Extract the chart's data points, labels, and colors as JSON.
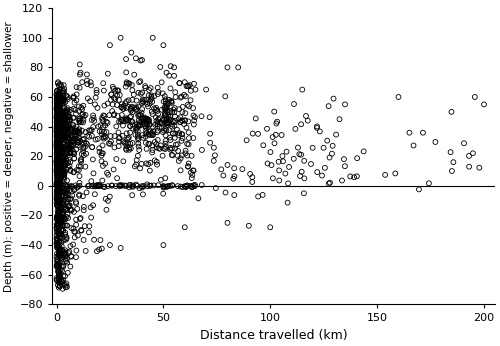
{
  "title": "",
  "xlabel": "Distance travelled (km)",
  "ylabel": "Depth (m): positive = deeper, negative = shallower",
  "xlim": [
    -2,
    205
  ],
  "ylim": [
    -80,
    120
  ],
  "xticks": [
    0,
    50,
    100,
    150,
    200
  ],
  "yticks": [
    -80,
    -60,
    -40,
    -20,
    0,
    20,
    40,
    60,
    80,
    100,
    120
  ],
  "marker": "o",
  "marker_size": 3.5,
  "marker_facecolor": "none",
  "marker_edgecolor": "black",
  "marker_linewidth": 0.6,
  "background_color": "white",
  "seed": 42
}
